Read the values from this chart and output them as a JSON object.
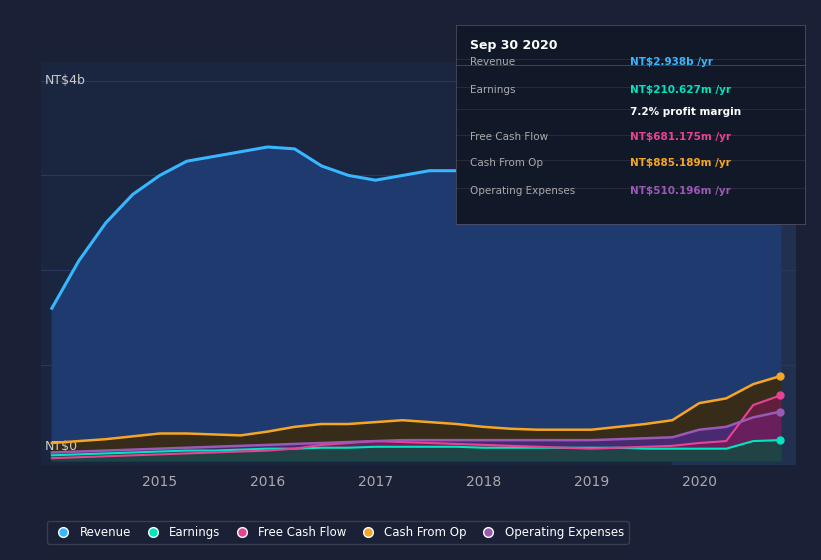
{
  "bg_color": "#1a2035",
  "plot_bg": "#1a2540",
  "grid_color": "#2a3a5c",
  "tooltip_bg": "#111827",
  "x_years": [
    2014,
    2014.25,
    2014.5,
    2014.75,
    2015,
    2015.25,
    2015.5,
    2015.75,
    2016,
    2016.25,
    2016.5,
    2016.75,
    2017,
    2017.25,
    2017.5,
    2017.75,
    2018,
    2018.25,
    2018.5,
    2018.75,
    2019,
    2019.25,
    2019.5,
    2019.75,
    2020,
    2020.25,
    2020.5,
    2020.75
  ],
  "revenue": [
    1.6,
    2.1,
    2.5,
    2.8,
    3.0,
    3.15,
    3.2,
    3.25,
    3.3,
    3.28,
    3.1,
    3.0,
    2.95,
    3.0,
    3.05,
    3.05,
    3.05,
    3.08,
    3.05,
    3.0,
    3.0,
    2.95,
    2.9,
    2.85,
    2.7,
    2.6,
    2.8,
    2.938
  ],
  "earnings": [
    0.05,
    0.06,
    0.07,
    0.08,
    0.09,
    0.1,
    0.1,
    0.11,
    0.12,
    0.12,
    0.13,
    0.13,
    0.14,
    0.14,
    0.14,
    0.14,
    0.13,
    0.13,
    0.13,
    0.13,
    0.13,
    0.13,
    0.12,
    0.12,
    0.12,
    0.12,
    0.2,
    0.2106
  ],
  "free_cash_flow": [
    0.02,
    0.03,
    0.04,
    0.05,
    0.06,
    0.07,
    0.08,
    0.09,
    0.1,
    0.12,
    0.16,
    0.18,
    0.2,
    0.19,
    0.18,
    0.17,
    0.16,
    0.15,
    0.14,
    0.13,
    0.12,
    0.13,
    0.14,
    0.15,
    0.18,
    0.2,
    0.58,
    0.681
  ],
  "cash_from_op": [
    0.18,
    0.2,
    0.22,
    0.25,
    0.28,
    0.28,
    0.27,
    0.26,
    0.3,
    0.35,
    0.38,
    0.38,
    0.4,
    0.42,
    0.4,
    0.38,
    0.35,
    0.33,
    0.32,
    0.32,
    0.32,
    0.35,
    0.38,
    0.42,
    0.6,
    0.65,
    0.8,
    0.885
  ],
  "op_expenses": [
    0.08,
    0.09,
    0.1,
    0.11,
    0.12,
    0.13,
    0.14,
    0.15,
    0.16,
    0.17,
    0.18,
    0.19,
    0.2,
    0.21,
    0.21,
    0.21,
    0.21,
    0.21,
    0.21,
    0.21,
    0.21,
    0.22,
    0.23,
    0.24,
    0.32,
    0.35,
    0.45,
    0.51
  ],
  "revenue_color": "#38b6ff",
  "earnings_color": "#00e5c0",
  "fcf_color": "#e84393",
  "cashop_color": "#f5a623",
  "opex_color": "#9b59b6",
  "revenue_fill": "#1e3a6e",
  "ylabel_4b": "NT$4b",
  "ylabel_0": "NT$0",
  "xticks": [
    2015,
    2016,
    2017,
    2018,
    2019,
    2020
  ],
  "legend_labels": [
    "Revenue",
    "Earnings",
    "Free Cash Flow",
    "Cash From Op",
    "Operating Expenses"
  ],
  "info_title": "Sep 30 2020",
  "info_revenue": "NT$2.938b /yr",
  "info_earnings": "NT$210.627m /yr",
  "info_margin": "7.2% profit margin",
  "info_fcf": "NT$681.175m /yr",
  "info_cashop": "NT$885.189m /yr",
  "info_opex": "NT$510.196m /yr",
  "tooltip_rows": [
    {
      "label": "Revenue",
      "value": "NT$2.938b /yr",
      "value_color": "#38b6ff"
    },
    {
      "label": "Earnings",
      "value": "NT$210.627m /yr",
      "value_color": "#00e5c0"
    },
    {
      "label": "",
      "value": "7.2% profit margin",
      "value_color": "#ffffff"
    },
    {
      "label": "Free Cash Flow",
      "value": "NT$681.175m /yr",
      "value_color": "#e84393"
    },
    {
      "label": "Cash From Op",
      "value": "NT$885.189m /yr",
      "value_color": "#f5a623"
    },
    {
      "label": "Operating Expenses",
      "value": "NT$510.196m /yr",
      "value_color": "#9b59b6"
    }
  ]
}
